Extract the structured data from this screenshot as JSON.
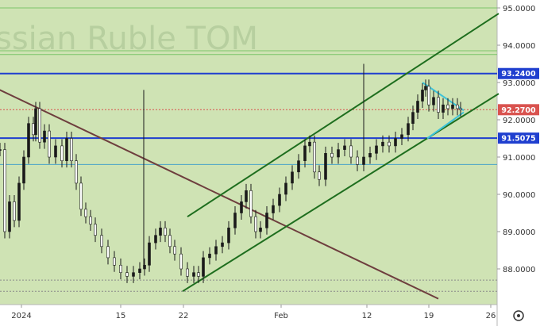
{
  "chart_data": {
    "type": "candlestick",
    "title": "",
    "watermark": "ssian Ruble TOM",
    "xlabel": "",
    "ylabel": "",
    "ylim": [
      87.2,
      95.2
    ],
    "x_tick_labels": [
      "2024",
      "15",
      "22",
      "Feb",
      "12",
      "19",
      "26"
    ],
    "y_tick_labels": [
      "95.0000",
      "94.0000",
      "93.0000",
      "92.0000",
      "91.0000",
      "90.0000",
      "89.0000",
      "88.0000"
    ],
    "y_ticks": [
      95,
      94,
      93,
      92,
      91,
      90,
      89,
      88
    ],
    "grid": false,
    "price_labels": [
      {
        "value": 93.24,
        "text": "93.2400",
        "color": "#1f3fcf"
      },
      {
        "value": 92.27,
        "text": "92.2700",
        "color": "#d9534f"
      },
      {
        "value": 91.5075,
        "text": "91.5075",
        "color": "#1f3fcf"
      }
    ],
    "horizontal_levels": [
      {
        "value": 95.0,
        "color": "#7cc46a"
      },
      {
        "value": 93.85,
        "color": "#7cc46a"
      },
      {
        "value": 93.75,
        "color": "#7cc46a"
      },
      {
        "value": 93.24,
        "color": "#1f3fcf"
      },
      {
        "value": 92.27,
        "color": "#d9534f"
      },
      {
        "value": 91.5075,
        "color": "#1f3fcf"
      },
      {
        "value": 90.8,
        "color": "#4aa3c8"
      },
      {
        "value": 87.7,
        "color": "#8a8a8a"
      },
      {
        "value": 87.4,
        "color": "#8a8a8a"
      }
    ],
    "series": [
      {
        "ohlc_points": [
          [
            0,
            91.2
          ],
          [
            6,
            89.0
          ],
          [
            12,
            89.8
          ],
          [
            18,
            89.3
          ],
          [
            24,
            90.3
          ],
          [
            30,
            91.0
          ],
          [
            36,
            91.9
          ],
          [
            42,
            91.6
          ],
          [
            45,
            92.3
          ],
          [
            50,
            91.4
          ],
          [
            56,
            91.7
          ],
          [
            62,
            91.0
          ],
          [
            70,
            91.3
          ],
          [
            78,
            90.9
          ],
          [
            84,
            91.5
          ],
          [
            90,
            90.9
          ],
          [
            96,
            90.3
          ],
          [
            102,
            89.6
          ],
          [
            108,
            89.4
          ],
          [
            114,
            89.2
          ],
          [
            120,
            88.9
          ],
          [
            128,
            88.6
          ],
          [
            136,
            88.3
          ],
          [
            144,
            88.1
          ],
          [
            152,
            87.9
          ],
          [
            160,
            87.8
          ],
          [
            168,
            87.9
          ],
          [
            176,
            88.0
          ],
          [
            182,
            88.1
          ],
          [
            188,
            88.7
          ],
          [
            196,
            88.9
          ],
          [
            202,
            89.1
          ],
          [
            208,
            88.9
          ],
          [
            214,
            88.6
          ],
          [
            220,
            88.4
          ],
          [
            228,
            88.0
          ],
          [
            236,
            87.8
          ],
          [
            244,
            87.9
          ],
          [
            250,
            87.8
          ],
          [
            256,
            88.3
          ],
          [
            264,
            88.4
          ],
          [
            272,
            88.6
          ],
          [
            280,
            88.7
          ],
          [
            288,
            89.1
          ],
          [
            296,
            89.5
          ],
          [
            304,
            89.8
          ],
          [
            310,
            90.1
          ],
          [
            316,
            89.4
          ],
          [
            322,
            89.0
          ],
          [
            328,
            89.1
          ],
          [
            336,
            89.5
          ],
          [
            344,
            89.7
          ],
          [
            352,
            90.0
          ],
          [
            360,
            90.3
          ],
          [
            368,
            90.6
          ],
          [
            376,
            90.9
          ],
          [
            384,
            91.3
          ],
          [
            390,
            91.4
          ],
          [
            396,
            90.6
          ],
          [
            402,
            90.4
          ],
          [
            410,
            91.1
          ],
          [
            418,
            91.0
          ],
          [
            426,
            91.2
          ],
          [
            434,
            91.3
          ],
          [
            442,
            91.0
          ],
          [
            450,
            90.8
          ],
          [
            458,
            91.0
          ],
          [
            466,
            91.1
          ],
          [
            474,
            91.3
          ],
          [
            482,
            91.4
          ],
          [
            490,
            91.3
          ],
          [
            498,
            91.5
          ],
          [
            506,
            91.6
          ],
          [
            514,
            91.9
          ],
          [
            520,
            92.2
          ],
          [
            526,
            92.5
          ],
          [
            532,
            92.8
          ],
          [
            536,
            92.9
          ],
          [
            540,
            92.4
          ],
          [
            546,
            92.6
          ],
          [
            552,
            92.2
          ],
          [
            558,
            92.4
          ],
          [
            564,
            92.3
          ],
          [
            570,
            92.4
          ],
          [
            576,
            92.3
          ],
          [
            580,
            92.27
          ]
        ]
      }
    ],
    "trendlines": [
      {
        "name": "",
        "color": "#6e3e3e",
        "from": [
          -10,
          92.9
        ],
        "to": [
          552,
          87.2
        ]
      },
      {
        "name": "",
        "color": "#1e6e1e",
        "from": [
          236,
          89.4
        ],
        "to": [
          628,
          94.85
        ]
      },
      {
        "name": "",
        "color": "#1e6e1e",
        "from": [
          230,
          87.4
        ],
        "to": [
          628,
          92.7
        ]
      },
      {
        "name": "",
        "color": "#3ec3d8",
        "from": [
          532,
          93.0
        ],
        "to": [
          584,
          92.25
        ]
      },
      {
        "name": "",
        "color": "#3ec3d8",
        "from": [
          538,
          91.5
        ],
        "to": [
          584,
          92.2
        ]
      }
    ],
    "spikes": [
      {
        "x": 181,
        "low": 88.0,
        "high": 92.8
      },
      {
        "x": 458,
        "low": 91.0,
        "high": 93.5
      }
    ],
    "x_positions": {
      "2024": 27,
      "15": 152,
      "22": 231,
      "Feb": 354,
      "12": 462,
      "19": 540,
      "26": 618
    },
    "colors": {
      "background": "#cfe3b4",
      "up": "#1a1a1a",
      "down": "#1a1a1a",
      "axis_bg": "#ffffff"
    }
  },
  "toolbar": {
    "settings_icon": "gear-circle-icon"
  }
}
